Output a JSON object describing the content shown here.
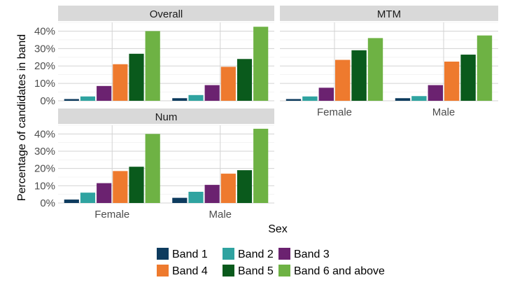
{
  "chart_data": {
    "type": "bar",
    "xlabel": "Sex",
    "ylabel": "Percentage of candidates in band",
    "ylim": [
      0,
      0.45
    ],
    "yticks": [
      "0%",
      "10%",
      "20%",
      "30%",
      "40%"
    ],
    "categories": [
      "Female",
      "Male"
    ],
    "legend_position": "bottom",
    "series": [
      {
        "name": "Band 1",
        "color": "#0d3b5e"
      },
      {
        "name": "Band 2",
        "color": "#2fa3a0"
      },
      {
        "name": "Band 3",
        "color": "#6b2270"
      },
      {
        "name": "Band 4",
        "color": "#ee7a2e"
      },
      {
        "name": "Band 5",
        "color": "#0a5a1c"
      },
      {
        "name": "Band 6 and above",
        "color": "#6eb244"
      }
    ],
    "panels": [
      {
        "title": "Overall",
        "values": {
          "Female": [
            0.01,
            0.025,
            0.085,
            0.21,
            0.27,
            0.4
          ],
          "Male": [
            0.015,
            0.033,
            0.09,
            0.195,
            0.24,
            0.425
          ]
        }
      },
      {
        "title": "MTM",
        "values": {
          "Female": [
            0.01,
            0.025,
            0.075,
            0.235,
            0.29,
            0.36
          ],
          "Male": [
            0.015,
            0.027,
            0.09,
            0.225,
            0.265,
            0.375
          ]
        }
      },
      {
        "title": "Num",
        "values": {
          "Female": [
            0.02,
            0.06,
            0.115,
            0.185,
            0.21,
            0.4
          ],
          "Male": [
            0.03,
            0.065,
            0.105,
            0.17,
            0.19,
            0.43
          ]
        }
      }
    ]
  }
}
